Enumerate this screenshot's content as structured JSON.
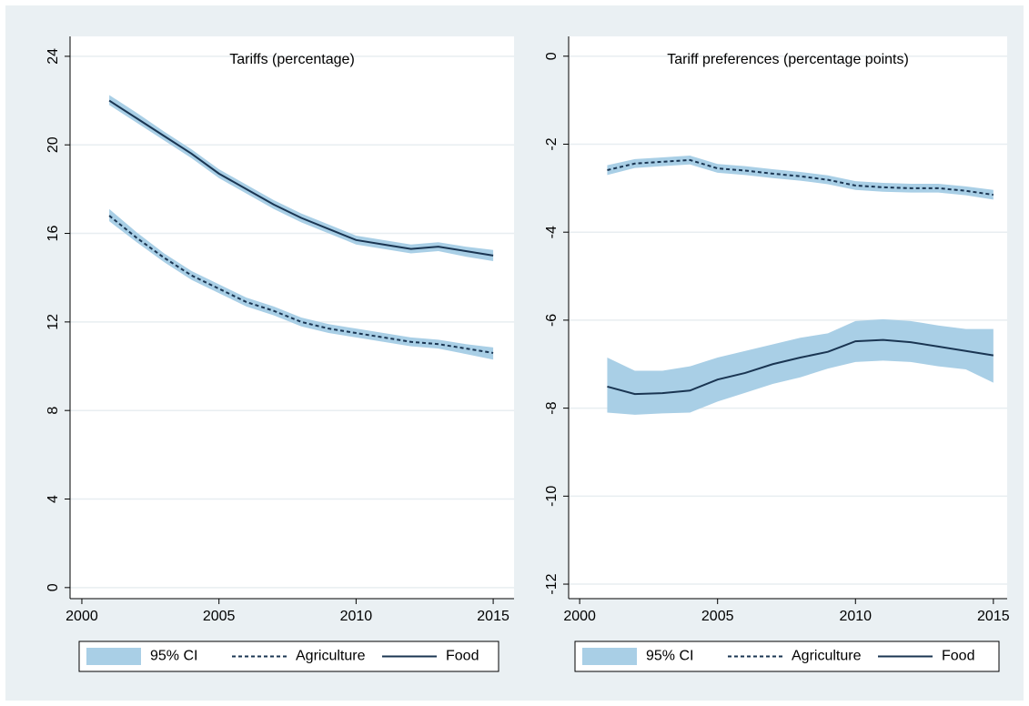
{
  "chart_data": [
    {
      "type": "line",
      "title": "Tariffs (percentage)",
      "x": [
        2001,
        2002,
        2003,
        2004,
        2005,
        2006,
        2007,
        2008,
        2009,
        2010,
        2011,
        2012,
        2013,
        2014,
        2015
      ],
      "xlim": [
        1999.57,
        2015.76
      ],
      "xticks": [
        2000,
        2005,
        2010,
        2015
      ],
      "ylim": [
        -0.5,
        24.9
      ],
      "yticks": [
        0,
        4,
        8,
        12,
        16,
        20,
        24
      ],
      "grid": true,
      "ci": {
        "name": "95% CI",
        "color": "#a9cfe6"
      },
      "series": [
        {
          "name": "Agriculture",
          "color": "#1a3552",
          "dash": true,
          "values": [
            16.8,
            15.8,
            14.9,
            14.1,
            13.5,
            12.9,
            12.5,
            12.0,
            11.7,
            11.5,
            11.3,
            11.1,
            11.0,
            10.8,
            10.6
          ],
          "lower": [
            16.55,
            15.6,
            14.7,
            13.9,
            13.3,
            12.7,
            12.3,
            11.8,
            11.5,
            11.3,
            11.1,
            10.9,
            10.8,
            10.55,
            10.3
          ],
          "upper": [
            17.1,
            16.05,
            15.1,
            14.3,
            13.7,
            13.1,
            12.7,
            12.2,
            11.9,
            11.7,
            11.5,
            11.3,
            11.2,
            11.0,
            10.85
          ]
        },
        {
          "name": "Food",
          "color": "#1a3552",
          "dash": false,
          "values": [
            22.0,
            21.2,
            20.4,
            19.6,
            18.7,
            18.0,
            17.3,
            16.7,
            16.2,
            15.7,
            15.5,
            15.3,
            15.4,
            15.2,
            15.0
          ],
          "lower": [
            21.8,
            21.0,
            20.2,
            19.4,
            18.5,
            17.8,
            17.1,
            16.5,
            16.0,
            15.5,
            15.3,
            15.1,
            15.2,
            14.95,
            14.75
          ],
          "upper": [
            22.25,
            21.45,
            20.6,
            19.8,
            18.9,
            18.2,
            17.5,
            16.9,
            16.4,
            15.9,
            15.7,
            15.5,
            15.6,
            15.4,
            15.25
          ]
        }
      ]
    },
    {
      "type": "line",
      "title": "Tariff preferences (percentage points)",
      "x": [
        2001,
        2002,
        2003,
        2004,
        2005,
        2006,
        2007,
        2008,
        2009,
        2010,
        2011,
        2012,
        2013,
        2014,
        2015
      ],
      "xlim": [
        1999.6,
        2015.5
      ],
      "xticks": [
        2000,
        2005,
        2010,
        2015
      ],
      "ylim": [
        -12.33,
        0.45
      ],
      "yticks": [
        -12,
        -10,
        -8,
        -6,
        -4,
        -2,
        0
      ],
      "grid": true,
      "ci": {
        "name": "95% CI",
        "color": "#a9cfe6"
      },
      "series": [
        {
          "name": "Agriculture",
          "color": "#1a3552",
          "dash": true,
          "values": [
            -2.59,
            -2.44,
            -2.4,
            -2.36,
            -2.55,
            -2.6,
            -2.67,
            -2.73,
            -2.81,
            -2.94,
            -2.98,
            -3.0,
            -3.0,
            -3.06,
            -3.15
          ],
          "lower": [
            -2.7,
            -2.54,
            -2.5,
            -2.46,
            -2.65,
            -2.7,
            -2.77,
            -2.83,
            -2.91,
            -3.04,
            -3.08,
            -3.1,
            -3.1,
            -3.16,
            -3.26
          ],
          "upper": [
            -2.48,
            -2.34,
            -2.3,
            -2.26,
            -2.45,
            -2.5,
            -2.57,
            -2.63,
            -2.71,
            -2.84,
            -2.88,
            -2.9,
            -2.9,
            -2.96,
            -3.04
          ]
        },
        {
          "name": "Food",
          "color": "#1a3552",
          "dash": false,
          "values": [
            -7.51,
            -7.68,
            -7.66,
            -7.6,
            -7.35,
            -7.2,
            -7.0,
            -6.85,
            -6.72,
            -6.48,
            -6.45,
            -6.5,
            -6.6,
            -6.7,
            -6.8
          ],
          "lower": [
            -8.1,
            -8.15,
            -8.12,
            -8.1,
            -7.85,
            -7.65,
            -7.45,
            -7.3,
            -7.1,
            -6.95,
            -6.92,
            -6.95,
            -7.05,
            -7.12,
            -7.42
          ],
          "upper": [
            -6.85,
            -7.15,
            -7.15,
            -7.05,
            -6.85,
            -6.7,
            -6.55,
            -6.4,
            -6.3,
            -6.02,
            -5.98,
            -6.02,
            -6.12,
            -6.2,
            -6.2
          ]
        }
      ]
    }
  ]
}
